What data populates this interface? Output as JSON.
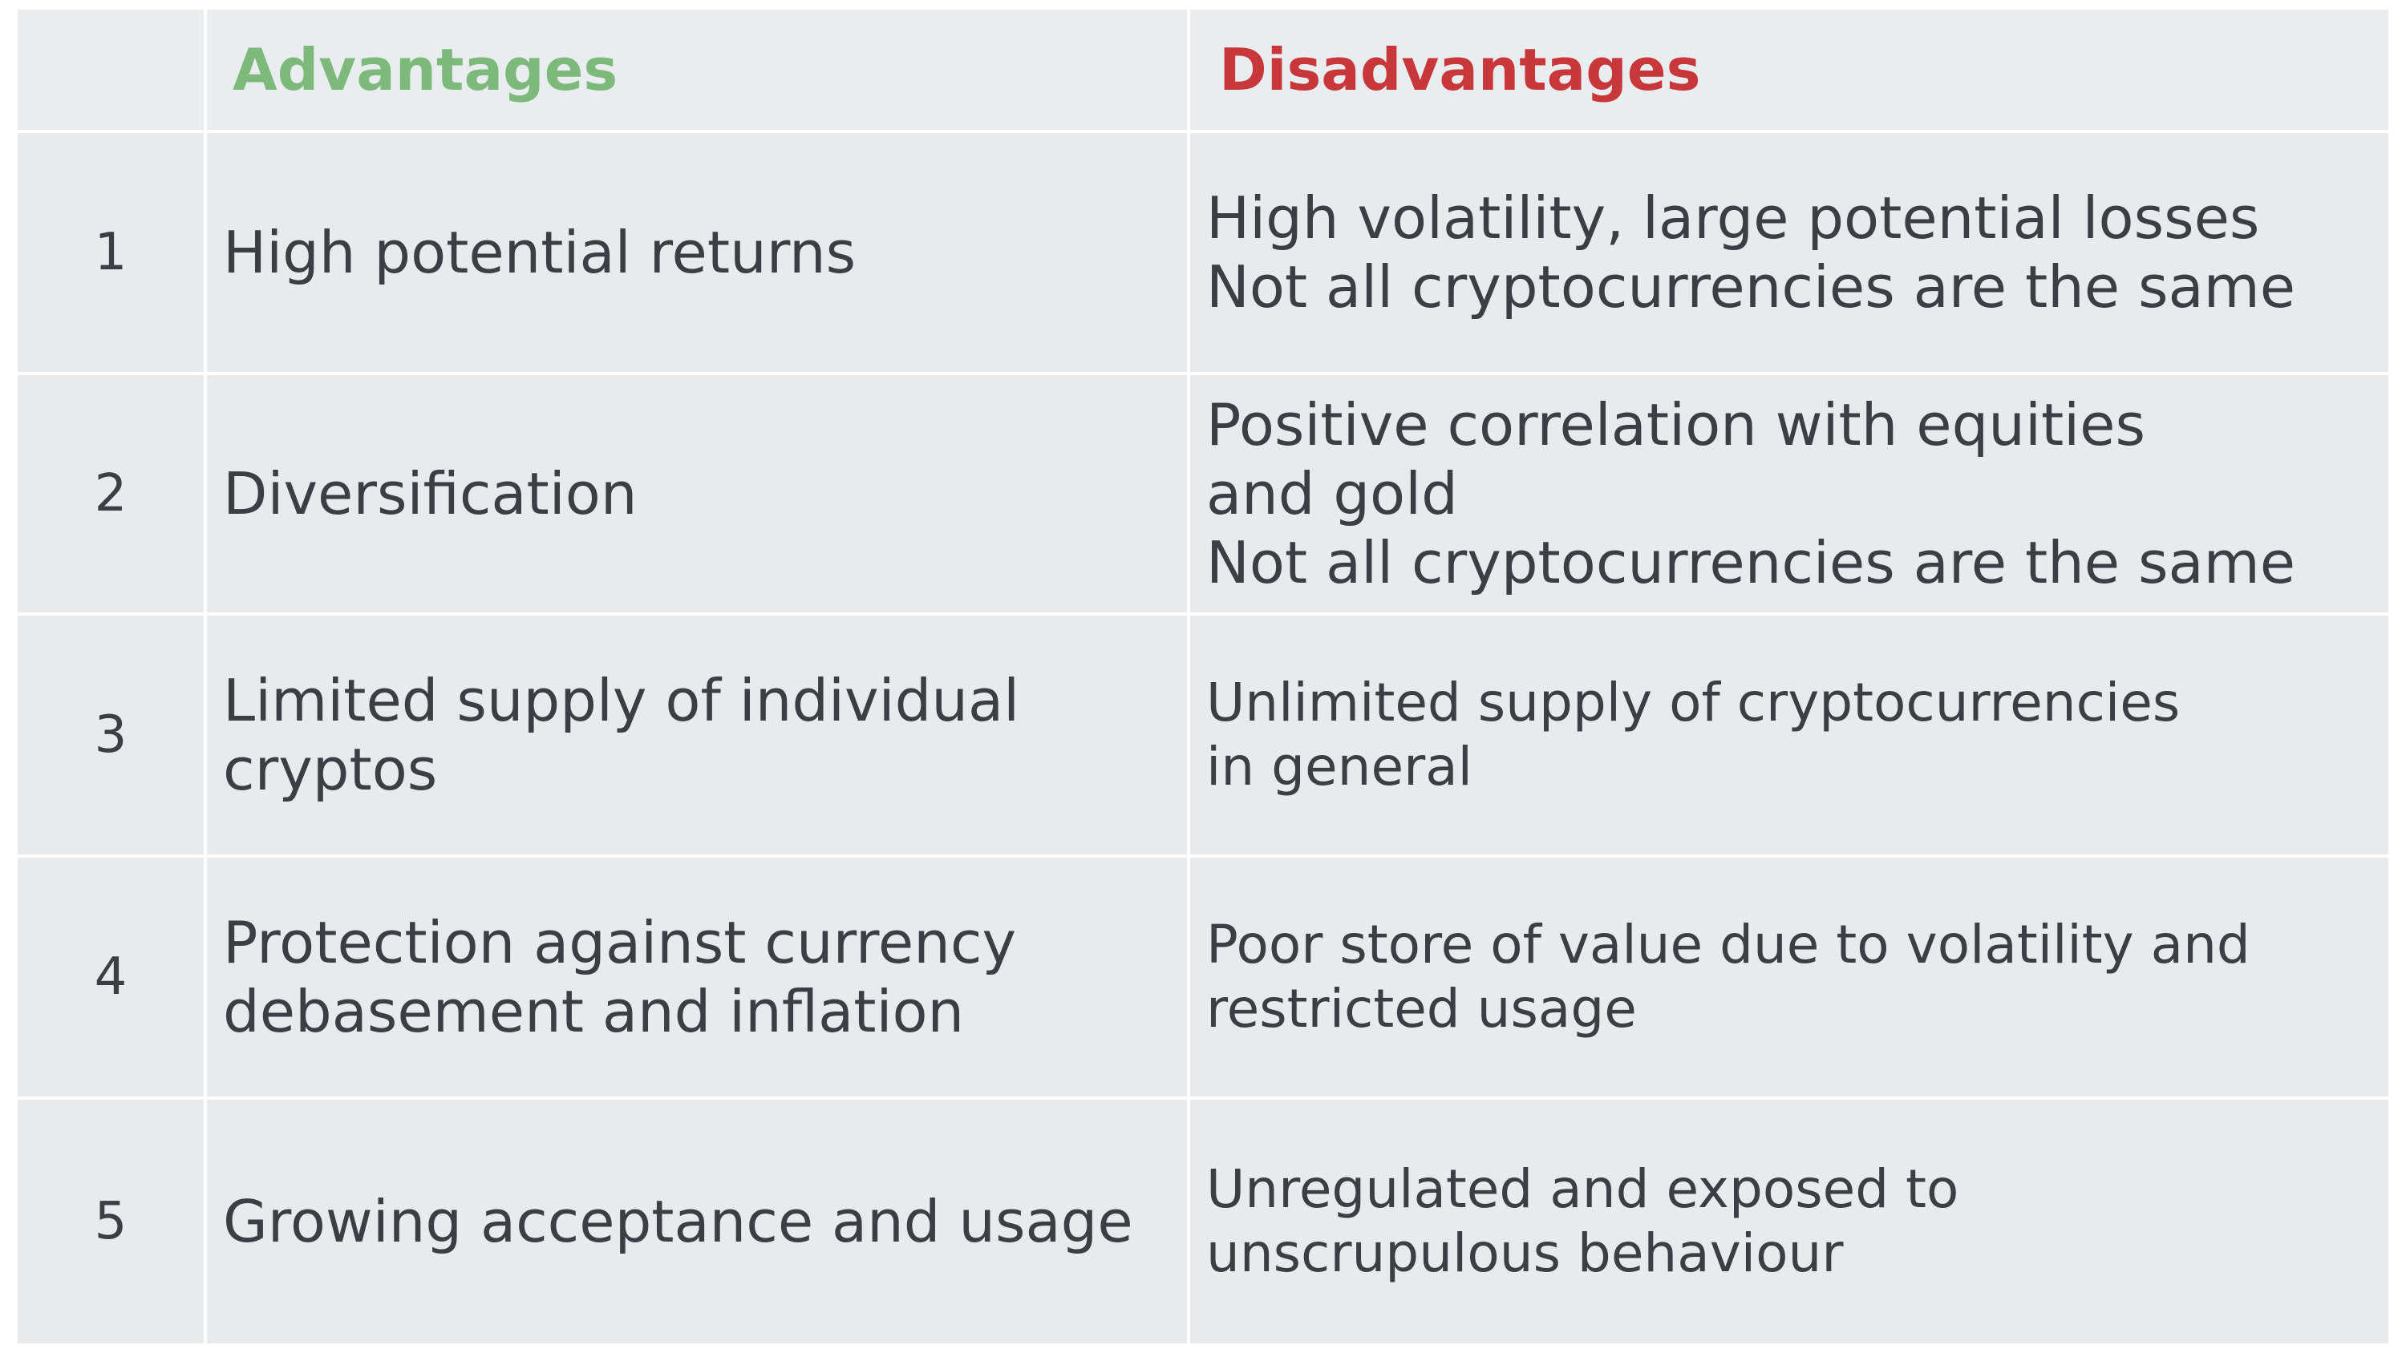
{
  "header": {
    "number": "",
    "advantages": "Advantages",
    "disadvantages": "Disadvantages"
  },
  "colors": {
    "advantages_header": "#7cb97a",
    "disadvantages_header": "#c8373a",
    "cell_background": "#e8ebee",
    "text": "#3a3e45"
  },
  "rows": [
    {
      "number": "1",
      "advantage": [
        "High potential returns"
      ],
      "disadvantage": [
        "High volatility, large potential losses",
        "Not all cryptocurrencies are the same"
      ]
    },
    {
      "number": "2",
      "advantage": [
        "Diversification"
      ],
      "disadvantage": [
        "Positive correlation with equities",
        "and gold",
        "Not all cryptocurrencies are the same"
      ]
    },
    {
      "number": "3",
      "advantage": [
        "Limited supply of individual",
        "cryptos"
      ],
      "disadvantage": [
        "Unlimited supply of cryptocurrencies",
        "in general"
      ]
    },
    {
      "number": "4",
      "advantage": [
        "Protection against currency",
        "debasement and inflation"
      ],
      "disadvantage": [
        "Poor store of value due to volatility and",
        "restricted usage"
      ]
    },
    {
      "number": "5",
      "advantage": [
        "Growing acceptance and usage"
      ],
      "disadvantage": [
        "Unregulated and exposed to",
        "unscrupulous behaviour"
      ]
    }
  ]
}
